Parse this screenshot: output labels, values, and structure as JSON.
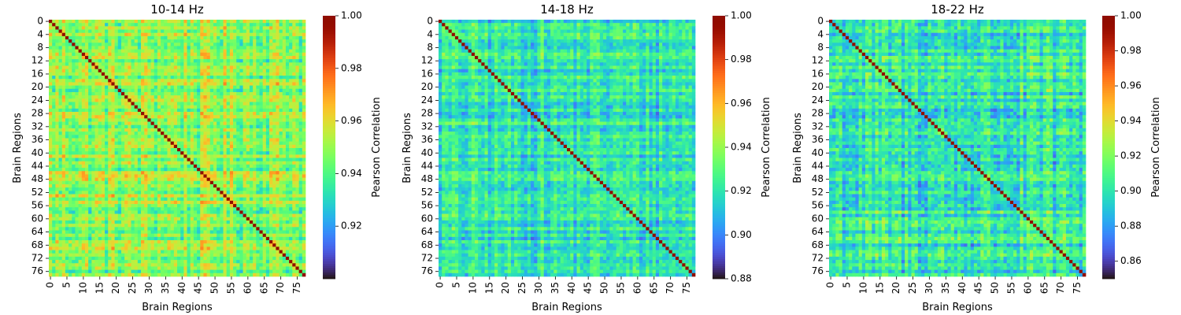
{
  "chart_data": [
    {
      "type": "heatmap",
      "title": "10-14 Hz",
      "xlabel": "Brain Regions",
      "ylabel": "Brain Regions",
      "n_regions": 78,
      "x_tick_labels": [
        "0",
        "5",
        "10",
        "15",
        "20",
        "25",
        "30",
        "35",
        "40",
        "45",
        "50",
        "55",
        "60",
        "65",
        "70",
        "75"
      ],
      "y_tick_labels": [
        "0",
        "4",
        "8",
        "12",
        "16",
        "20",
        "24",
        "28",
        "32",
        "36",
        "40",
        "44",
        "48",
        "52",
        "56",
        "60",
        "64",
        "68",
        "72",
        "76"
      ],
      "diagonal_value": 1.0,
      "typical_offdiag_range": [
        0.93,
        0.97
      ],
      "colorbar": {
        "label": "Pearson Correlation",
        "range": [
          0.9,
          1.0
        ],
        "tick_labels": [
          "0.92",
          "0.94",
          "0.96",
          "0.98",
          "1.00"
        ]
      }
    },
    {
      "type": "heatmap",
      "title": "14-18 Hz",
      "xlabel": "Brain Regions",
      "ylabel": "Brain Regions",
      "n_regions": 78,
      "x_tick_labels": [
        "0",
        "5",
        "10",
        "15",
        "20",
        "25",
        "30",
        "35",
        "40",
        "45",
        "50",
        "55",
        "60",
        "65",
        "70",
        "75"
      ],
      "y_tick_labels": [
        "0",
        "4",
        "8",
        "12",
        "16",
        "20",
        "24",
        "28",
        "32",
        "36",
        "40",
        "44",
        "48",
        "52",
        "56",
        "60",
        "64",
        "68",
        "72",
        "76"
      ],
      "diagonal_value": 1.0,
      "typical_offdiag_range": [
        0.9,
        0.94
      ],
      "colorbar": {
        "label": "Pearson Correlation",
        "range": [
          0.88,
          1.0
        ],
        "tick_labels": [
          "0.88",
          "0.90",
          "0.92",
          "0.94",
          "0.96",
          "0.98",
          "1.00"
        ]
      }
    },
    {
      "type": "heatmap",
      "title": "18-22 Hz",
      "xlabel": "Brain Regions",
      "ylabel": "Brain Regions",
      "n_regions": 78,
      "x_tick_labels": [
        "0",
        "5",
        "10",
        "15",
        "20",
        "25",
        "30",
        "35",
        "40",
        "45",
        "50",
        "55",
        "60",
        "65",
        "70",
        "75"
      ],
      "y_tick_labels": [
        "0",
        "4",
        "8",
        "12",
        "16",
        "20",
        "24",
        "28",
        "32",
        "36",
        "40",
        "44",
        "48",
        "52",
        "56",
        "60",
        "64",
        "68",
        "72",
        "76"
      ],
      "diagonal_value": 1.0,
      "typical_offdiag_range": [
        0.87,
        0.93
      ],
      "colorbar": {
        "label": "Pearson Correlation",
        "range": [
          0.85,
          1.0
        ],
        "tick_labels": [
          "0.86",
          "0.88",
          "0.90",
          "0.92",
          "0.94",
          "0.96",
          "0.98",
          "1.00"
        ]
      }
    }
  ]
}
